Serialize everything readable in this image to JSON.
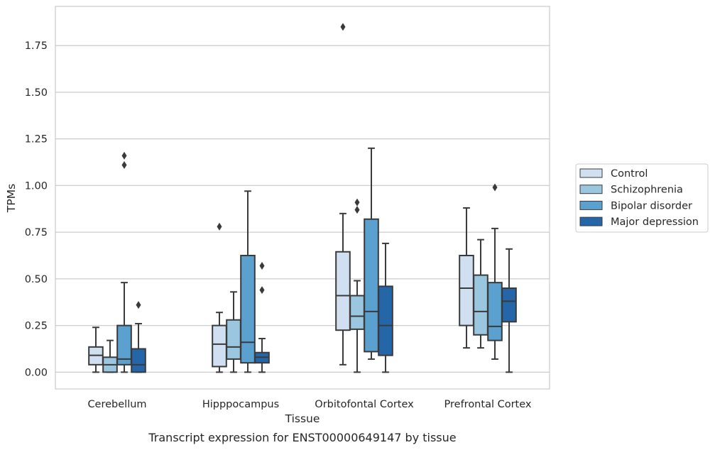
{
  "caption": "Transcript expression for ENST00000649147 by tissue",
  "chart_data": {
    "type": "box",
    "xlabel": "Tissue",
    "ylabel": "TPMs",
    "ylim": [
      -0.09,
      1.96
    ],
    "yticks": [
      "0.00",
      "0.25",
      "0.50",
      "0.75",
      "1.00",
      "1.25",
      "1.50",
      "1.75"
    ],
    "grid": "horizontal",
    "legend_position": "right",
    "categories": [
      "Cerebellum",
      "Hipppocampus",
      "Orbitofontal Cortex",
      "Prefrontal Cortex"
    ],
    "series": [
      {
        "name": "Control",
        "color": "#d0e0f1",
        "boxes": [
          {
            "min": 0.0,
            "q1": 0.04,
            "median": 0.09,
            "q3": 0.135,
            "max": 0.24,
            "outliers": []
          },
          {
            "min": 0.0,
            "q1": 0.03,
            "median": 0.15,
            "q3": 0.25,
            "max": 0.32,
            "outliers": [
              0.78
            ]
          },
          {
            "min": 0.04,
            "q1": 0.225,
            "median": 0.41,
            "q3": 0.645,
            "max": 0.85,
            "outliers": [
              1.85
            ]
          },
          {
            "min": 0.13,
            "q1": 0.25,
            "median": 0.45,
            "q3": 0.625,
            "max": 0.88,
            "outliers": []
          }
        ]
      },
      {
        "name": "Schizophrenia",
        "color": "#9ac6e0",
        "boxes": [
          {
            "min": 0.0,
            "q1": 0.0,
            "median": 0.04,
            "q3": 0.08,
            "max": 0.17,
            "outliers": []
          },
          {
            "min": 0.0,
            "q1": 0.07,
            "median": 0.135,
            "q3": 0.28,
            "max": 0.43,
            "outliers": []
          },
          {
            "min": 0.0,
            "q1": 0.23,
            "median": 0.3,
            "q3": 0.41,
            "max": 0.49,
            "outliers": [
              0.87,
              0.91
            ]
          },
          {
            "min": 0.13,
            "q1": 0.2,
            "median": 0.325,
            "q3": 0.52,
            "max": 0.71,
            "outliers": []
          }
        ]
      },
      {
        "name": "Bipolar disorder",
        "color": "#5ba1cf",
        "boxes": [
          {
            "min": 0.0,
            "q1": 0.04,
            "median": 0.07,
            "q3": 0.25,
            "max": 0.48,
            "outliers": [
              1.11,
              1.16
            ]
          },
          {
            "min": 0.0,
            "q1": 0.05,
            "median": 0.16,
            "q3": 0.625,
            "max": 0.97,
            "outliers": []
          },
          {
            "min": 0.07,
            "q1": 0.11,
            "median": 0.325,
            "q3": 0.82,
            "max": 1.2,
            "outliers": []
          },
          {
            "min": 0.07,
            "q1": 0.17,
            "median": 0.245,
            "q3": 0.48,
            "max": 0.77,
            "outliers": [
              0.99
            ]
          }
        ]
      },
      {
        "name": "Major depression",
        "color": "#2566a9",
        "boxes": [
          {
            "min": 0.0,
            "q1": 0.0,
            "median": 0.04,
            "q3": 0.125,
            "max": 0.26,
            "outliers": [
              0.36
            ]
          },
          {
            "min": 0.0,
            "q1": 0.05,
            "median": 0.08,
            "q3": 0.105,
            "max": 0.18,
            "outliers": [
              0.44,
              0.57
            ]
          },
          {
            "min": 0.0,
            "q1": 0.09,
            "median": 0.25,
            "q3": 0.46,
            "max": 0.69,
            "outliers": []
          },
          {
            "min": 0.0,
            "q1": 0.27,
            "median": 0.38,
            "q3": 0.45,
            "max": 0.66,
            "outliers": []
          }
        ]
      }
    ]
  }
}
